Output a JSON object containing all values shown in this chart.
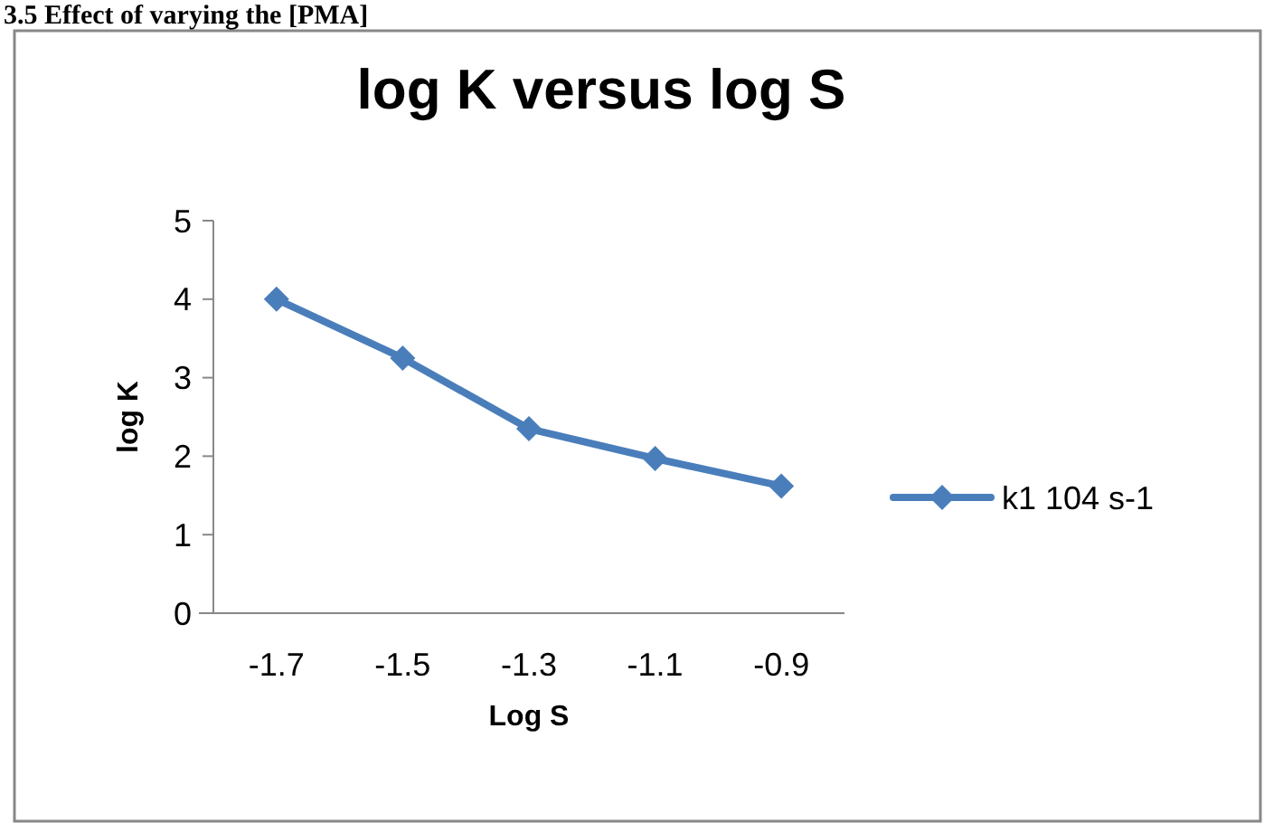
{
  "chart_data": {
    "type": "line",
    "title": "log K versus log S",
    "xlabel": "Log S",
    "ylabel": "log K",
    "annotations": [
      "3.5 Effect of varying the [PMA]"
    ],
    "categories": [
      "-1.7",
      "-1.5",
      "-1.3",
      "-1.1",
      "-0.9"
    ],
    "series": [
      {
        "name": "k1 104 s-1",
        "color": "#4a7ebb",
        "values": [
          4.0,
          3.25,
          2.35,
          1.97,
          1.62
        ]
      }
    ],
    "ylim": [
      0,
      5
    ],
    "yticks": [
      0,
      1,
      2,
      3,
      4,
      5
    ],
    "grid": false,
    "legend": "right",
    "marker": "diamond",
    "line_style": "solid"
  }
}
